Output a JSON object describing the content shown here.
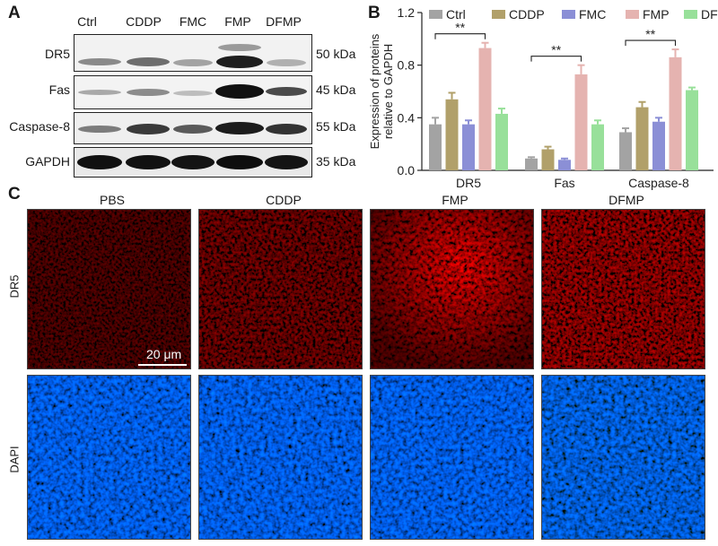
{
  "panel_a": {
    "letter": "A",
    "lanes": [
      "Ctrl",
      "CDDP",
      "FMC",
      "FMP",
      "DFMP"
    ],
    "rows": [
      {
        "label": "DR5",
        "kda": "50 kDa"
      },
      {
        "label": "Fas",
        "kda": "45 kDa"
      },
      {
        "label": "Caspase-8",
        "kda": "55 kDa"
      },
      {
        "label": "GAPDH",
        "kda": "35 kDa"
      }
    ]
  },
  "panel_b": {
    "letter": "B"
  },
  "panel_c": {
    "letter": "C",
    "columns": [
      "PBS",
      "CDDP",
      "FMP",
      "DFMP"
    ],
    "rows": [
      "DR5",
      "DAPI"
    ],
    "scale_bar": "20 μm"
  },
  "chart_data": {
    "type": "bar",
    "ylabel": "Expression of proteins relative to GAPDH",
    "ylim": [
      0,
      1.2
    ],
    "yticks": [
      "0.0",
      "0.4",
      "0.8",
      "1.2"
    ],
    "legend_position": "top",
    "categories": [
      "DR5",
      "Fas",
      "Caspase-8"
    ],
    "series": [
      {
        "name": "Ctrl",
        "color": "#a3a3a3",
        "values": [
          0.35,
          0.09,
          0.29
        ],
        "errors": [
          0.05,
          0.01,
          0.03
        ]
      },
      {
        "name": "CDDP",
        "color": "#b1a06a",
        "values": [
          0.54,
          0.16,
          0.48
        ],
        "errors": [
          0.05,
          0.02,
          0.04
        ]
      },
      {
        "name": "FMC",
        "color": "#8b8fd6",
        "values": [
          0.35,
          0.08,
          0.37
        ],
        "errors": [
          0.03,
          0.01,
          0.03
        ]
      },
      {
        "name": "FMP",
        "color": "#e5b3b0",
        "values": [
          0.93,
          0.73,
          0.86
        ],
        "errors": [
          0.04,
          0.07,
          0.06
        ]
      },
      {
        "name": "DFMP",
        "color": "#98e09a",
        "values": [
          0.43,
          0.35,
          0.61
        ],
        "errors": [
          0.04,
          0.03,
          0.02
        ]
      }
    ],
    "annotations": [
      "**",
      "**",
      "**"
    ]
  }
}
